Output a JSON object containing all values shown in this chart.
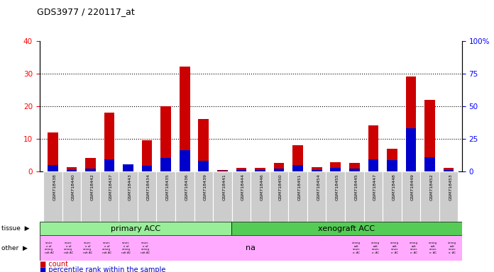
{
  "title": "GDS3977 / 220117_at",
  "samples": [
    "GSM718438",
    "GSM718440",
    "GSM718442",
    "GSM718437",
    "GSM718443",
    "GSM718434",
    "GSM718435",
    "GSM718436",
    "GSM718439",
    "GSM718441",
    "GSM718444",
    "GSM718446",
    "GSM718450",
    "GSM718451",
    "GSM718454",
    "GSM718455",
    "GSM718445",
    "GSM718447",
    "GSM718448",
    "GSM718449",
    "GSM718452",
    "GSM718453"
  ],
  "counts": [
    12,
    1.2,
    4.0,
    18,
    2.0,
    9.5,
    20.0,
    32.0,
    16.0,
    0.4,
    1.0,
    1.0,
    2.5,
    8.0,
    1.2,
    2.7,
    2.5,
    14.0,
    7.0,
    29.0,
    22.0,
    1.0
  ],
  "percentile_ranks": [
    5.0,
    1.2,
    2.2,
    9.0,
    5.5,
    4.5,
    10.5,
    16.0,
    8.0,
    0.4,
    0.8,
    0.9,
    2.0,
    5.0,
    1.2,
    2.5,
    2.2,
    9.0,
    8.5,
    33.0,
    11.0,
    0.8
  ],
  "ylim_left": [
    0,
    40
  ],
  "ylim_right": [
    0,
    100
  ],
  "yticks_left": [
    0,
    10,
    20,
    30,
    40
  ],
  "yticks_right": [
    0,
    25,
    50,
    75,
    100
  ],
  "bar_color": "#cc0000",
  "percentile_color": "#0000cc",
  "bg_color": "#ffffff",
  "tissue_primary_color": "#99ee99",
  "tissue_xenograft_color": "#55cc55",
  "other_color": "#ffaaff",
  "tissue_primary_label": "primary ACC",
  "tissue_xenograft_label": "xenograft ACC",
  "other_na_label": "na",
  "n_primary": 10,
  "n_xenograft": 12
}
